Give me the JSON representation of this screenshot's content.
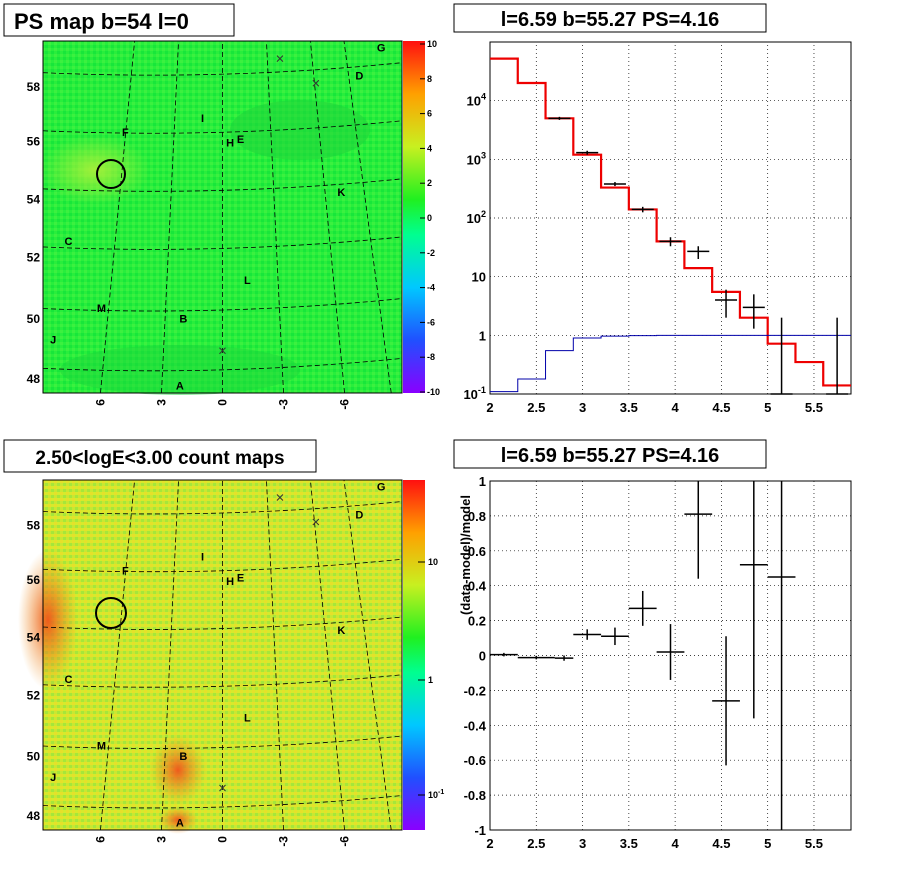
{
  "panels": {
    "tl_title": "PS map b=54 l=0",
    "tr_title": "l=6.59 b=55.27 PS=4.16",
    "bl_title": "2.50<logE<3.00 count maps",
    "br_title": "l=6.59 b=55.27 PS=4.16"
  },
  "maps": {
    "lat_ticks": [
      "48",
      "50",
      "52",
      "54",
      "56",
      "58"
    ],
    "lon_ticks": [
      "6",
      "3",
      "0",
      "-3",
      "-6"
    ],
    "sources": [
      "A",
      "B",
      "C",
      "D",
      "E",
      "F",
      "G",
      "H",
      "I",
      "J",
      "K",
      "L",
      "M"
    ],
    "colors": {
      "background_map_top": "#22ee44",
      "background_map_bottom": "#cfe830",
      "hot": "#e85a20"
    }
  },
  "chart_data": [
    {
      "type": "heatmap",
      "title": "PS map b=54 l=0",
      "y_tick_labels": [
        "48",
        "50",
        "52",
        "54",
        "56",
        "58"
      ],
      "x_tick_labels": [
        "6",
        "3",
        "0",
        "-3",
        "-6"
      ],
      "colorbar": {
        "min": -10,
        "max": 10,
        "labels": [
          "10",
          "8",
          "6",
          "4",
          "2",
          "0",
          "-2",
          "-4",
          "-6",
          "-8",
          "-10"
        ]
      },
      "annotations": [
        "A",
        "B",
        "C",
        "D",
        "E",
        "F",
        "G",
        "H",
        "I",
        "J",
        "K",
        "L",
        "M"
      ]
    },
    {
      "type": "line",
      "title": "l=6.59 b=55.27 PS=4.16",
      "log_y": true,
      "xlim": [
        2,
        5.9
      ],
      "ylim": [
        0.1,
        100000
      ],
      "x_tick_labels": [
        "2",
        "2.5",
        "3",
        "3.5",
        "4",
        "4.5",
        "5",
        "5.5"
      ],
      "y_tick_labels": [
        "10^-1",
        "1",
        "10",
        "10^2",
        "10^3",
        "10^4"
      ],
      "grid": true,
      "series": [
        {
          "edges": [
            2,
            2.3,
            2.6,
            2.9,
            3.2,
            3.5,
            3.8,
            4.1,
            4.4,
            4.7,
            5,
            5.3,
            5.6,
            5.9
          ],
          "values": [
            52000,
            20000,
            5000,
            1200,
            330,
            140,
            40,
            14,
            5.5,
            2.0,
            0.72,
            0.35,
            0.14
          ]
        },
        {
          "edges": [
            2,
            2.3,
            2.6,
            2.9,
            3.2,
            3.5,
            3.8,
            4.1,
            4.4,
            4.7,
            5,
            5.3,
            5.6,
            5.9
          ],
          "values": [
            0.11,
            0.18,
            0.55,
            0.9,
            0.97,
            0.99,
            1.0,
            1.0,
            1.0,
            1.0,
            1.0,
            1.0,
            1.0
          ]
        },
        {
          "x": [
            2.75,
            3.05,
            3.35,
            3.65,
            3.95,
            4.25,
            4.55,
            4.85,
            5.15,
            5.75
          ],
          "y": [
            5000,
            1300,
            380,
            140,
            40,
            27,
            4,
            3,
            0.1,
            0.1
          ],
          "err_lo": [
            4700,
            1200,
            350,
            125,
            33,
            20,
            2,
            1.3,
            0.1,
            0.1
          ],
          "err_hi": [
            5300,
            1400,
            410,
            155,
            47,
            33,
            6,
            5,
            2,
            2
          ]
        }
      ]
    },
    {
      "type": "heatmap",
      "title": "2.50<logE<3.00 count maps",
      "y_tick_labels": [
        "48",
        "50",
        "52",
        "54",
        "56",
        "58"
      ],
      "x_tick_labels": [
        "6",
        "3",
        "0",
        "-3",
        "-6"
      ],
      "colorbar": {
        "log": true,
        "labels": [
          "10",
          "1",
          "10^-1"
        ]
      },
      "annotations": [
        "A",
        "B",
        "C",
        "D",
        "E",
        "F",
        "G",
        "H",
        "I",
        "J",
        "K",
        "L",
        "M"
      ]
    },
    {
      "type": "scatter",
      "title": "l=6.59 b=55.27 PS=4.16",
      "ylabel": "(data-model)/model",
      "xlim": [
        2,
        5.9
      ],
      "ylim": [
        -1,
        1
      ],
      "x_tick_labels": [
        "2",
        "2.5",
        "3",
        "3.5",
        "4",
        "4.5",
        "5",
        "5.5"
      ],
      "y_tick_labels": [
        "1",
        "0.8",
        "0.6",
        "0.4",
        "0.2",
        "0",
        "-0.2",
        "-0.4",
        "-0.6",
        "-0.8",
        "-1"
      ],
      "grid": true,
      "points": [
        {
          "x": 2.15,
          "y": 0.005,
          "e": 0.01,
          "xw": 0.15
        },
        {
          "x": 2.5,
          "y": -0.012,
          "e": 0.01,
          "xw": 0.2
        },
        {
          "x": 2.8,
          "y": -0.015,
          "e": 0.015,
          "xw": 0.1
        },
        {
          "x": 3.05,
          "y": 0.12,
          "e": 0.03,
          "xw": 0.15
        },
        {
          "x": 3.35,
          "y": 0.11,
          "e": 0.05,
          "xw": 0.15
        },
        {
          "x": 3.65,
          "y": 0.27,
          "e": 0.1,
          "xw": 0.15
        },
        {
          "x": 3.95,
          "y": 0.02,
          "e": 0.16,
          "xw": 0.15
        },
        {
          "x": 4.25,
          "y": 0.81,
          "e": 0.37,
          "xw": 0.15
        },
        {
          "x": 4.55,
          "y": -0.26,
          "e": 0.37,
          "xw": 0.15
        },
        {
          "x": 4.85,
          "y": 0.52,
          "e": 0.88,
          "xw": 0.15
        },
        {
          "x": 5.15,
          "y": 0.45,
          "e": 1.5,
          "xw": 0.15
        }
      ]
    }
  ]
}
